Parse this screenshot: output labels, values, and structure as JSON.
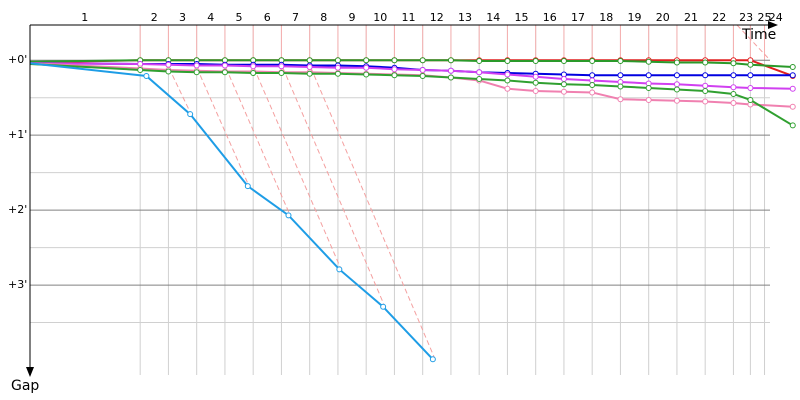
{
  "chart_data": {
    "type": "line",
    "x_label": "Time",
    "y_label": "Gap",
    "xlim": [
      0,
      27.15
    ],
    "ylim": [
      -0.47,
      4.2
    ],
    "xticks": [
      {
        "value": 1.94,
        "label": "1"
      },
      {
        "value": 4.4,
        "label": "2"
      },
      {
        "value": 5.4,
        "label": "3"
      },
      {
        "value": 6.4,
        "label": "4"
      },
      {
        "value": 7.4,
        "label": "5"
      },
      {
        "value": 8.4,
        "label": "6"
      },
      {
        "value": 9.4,
        "label": "7"
      },
      {
        "value": 10.4,
        "label": "8"
      },
      {
        "value": 11.4,
        "label": "9"
      },
      {
        "value": 12.4,
        "label": "10"
      },
      {
        "value": 13.4,
        "label": "11"
      },
      {
        "value": 14.4,
        "label": "12"
      },
      {
        "value": 15.4,
        "label": "13"
      },
      {
        "value": 16.4,
        "label": "14"
      },
      {
        "value": 17.4,
        "label": "15"
      },
      {
        "value": 18.4,
        "label": "16"
      },
      {
        "value": 19.4,
        "label": "17"
      },
      {
        "value": 20.4,
        "label": "18"
      },
      {
        "value": 21.4,
        "label": "19"
      },
      {
        "value": 22.4,
        "label": "20"
      },
      {
        "value": 23.4,
        "label": "21"
      },
      {
        "value": 24.4,
        "label": "22"
      },
      {
        "value": 25.35,
        "label": "23"
      },
      {
        "value": 26.0,
        "label": "25"
      },
      {
        "value": 26.4,
        "label": "24"
      }
    ],
    "xgrid": [
      3.9,
      4.9,
      5.9,
      6.9,
      7.9,
      8.9,
      9.9,
      10.9,
      11.9,
      12.9,
      13.9,
      14.9,
      15.9,
      16.9,
      17.9,
      18.9,
      19.9,
      20.9,
      21.9,
      22.9,
      23.9,
      24.9,
      25.5,
      26.0
    ],
    "yticks": [
      {
        "value": 0,
        "label": "+0'"
      },
      {
        "value": 1,
        "label": "+1'"
      },
      {
        "value": 2,
        "label": "+2'"
      },
      {
        "value": 3,
        "label": "+3'"
      }
    ],
    "minor_yticks": [
      0.5,
      1.5,
      2.5,
      3.5
    ],
    "grid": true,
    "series": [
      {
        "color": "#e02020",
        "x": [
          0,
          3.9,
          4.9,
          5.9,
          6.9,
          7.9,
          8.9,
          9.9,
          10.9,
          11.9,
          12.9,
          13.9,
          14.9,
          15.9,
          16.9,
          17.9,
          18.9,
          19.9,
          20.9,
          21.9,
          22.9,
          23.9,
          24.9,
          25.5,
          27.0
        ],
        "values": [
          0.03,
          0,
          0,
          0,
          0,
          0,
          0,
          0,
          0,
          0,
          0,
          0,
          0,
          0,
          0,
          0,
          0,
          0,
          0,
          0,
          0,
          0,
          0,
          0,
          0.21
        ]
      },
      {
        "color": "#2a9a2a",
        "x": [
          0,
          3.9,
          4.9,
          5.9,
          6.9,
          7.9,
          8.9,
          9.9,
          10.9,
          11.9,
          12.9,
          13.9,
          14.9,
          15.9,
          16.9,
          17.9,
          18.9,
          19.9,
          20.9,
          21.9,
          22.9,
          23.9,
          24.9,
          25.5,
          27.0
        ],
        "values": [
          0.02,
          0,
          0,
          0,
          0,
          0,
          0,
          0,
          0,
          0,
          0,
          0,
          0,
          0.01,
          0.01,
          0.01,
          0.01,
          0.01,
          0.01,
          0.02,
          0.03,
          0.03,
          0.04,
          0.06,
          0.09
        ]
      },
      {
        "color": "#0000e0",
        "x": [
          0,
          3.9,
          4.9,
          5.9,
          6.9,
          7.9,
          8.9,
          9.9,
          10.9,
          11.9,
          12.9,
          13.9,
          14.9,
          15.9,
          16.9,
          17.9,
          18.9,
          19.9,
          20.9,
          21.9,
          22.9,
          23.9,
          24.9,
          25.5,
          27.0
        ],
        "values": [
          0.04,
          0.05,
          0.05,
          0.05,
          0.06,
          0.06,
          0.06,
          0.07,
          0.07,
          0.08,
          0.1,
          0.13,
          0.14,
          0.16,
          0.17,
          0.18,
          0.19,
          0.2,
          0.2,
          0.2,
          0.2,
          0.2,
          0.2,
          0.2,
          0.2
        ]
      },
      {
        "color": "#d040f0",
        "x": [
          0,
          3.9,
          4.9,
          5.9,
          6.9,
          7.9,
          8.9,
          9.9,
          10.9,
          11.9,
          12.9,
          13.9,
          14.9,
          15.9,
          16.9,
          17.9,
          18.9,
          19.9,
          20.9,
          21.9,
          22.9,
          23.9,
          24.9,
          25.5,
          27.0
        ],
        "values": [
          0.04,
          0.05,
          0.06,
          0.07,
          0.07,
          0.08,
          0.08,
          0.09,
          0.1,
          0.1,
          0.12,
          0.13,
          0.14,
          0.16,
          0.19,
          0.22,
          0.25,
          0.27,
          0.29,
          0.31,
          0.32,
          0.34,
          0.36,
          0.37,
          0.38
        ]
      },
      {
        "color": "#f080b0",
        "x": [
          0,
          3.9,
          4.9,
          5.9,
          6.9,
          7.9,
          8.9,
          9.9,
          10.9,
          11.9,
          12.9,
          13.9,
          14.9,
          15.9,
          16.9,
          17.9,
          18.9,
          19.9,
          20.9,
          21.9,
          22.9,
          23.9,
          24.9,
          25.5,
          27.0
        ],
        "values": [
          0.04,
          0.11,
          0.13,
          0.14,
          0.15,
          0.15,
          0.16,
          0.16,
          0.17,
          0.18,
          0.19,
          0.2,
          0.23,
          0.27,
          0.38,
          0.41,
          0.42,
          0.43,
          0.52,
          0.53,
          0.54,
          0.55,
          0.57,
          0.59,
          0.62
        ]
      },
      {
        "color": "#30a030",
        "x": [
          0,
          3.9,
          4.9,
          5.9,
          6.9,
          7.9,
          8.9,
          9.9,
          10.9,
          11.9,
          12.9,
          13.9,
          14.9,
          15.9,
          16.9,
          17.9,
          18.9,
          19.9,
          20.9,
          21.9,
          22.9,
          23.9,
          24.9,
          25.5,
          27.0
        ],
        "values": [
          0.05,
          0.13,
          0.15,
          0.16,
          0.16,
          0.17,
          0.17,
          0.18,
          0.18,
          0.19,
          0.2,
          0.21,
          0.23,
          0.25,
          0.27,
          0.3,
          0.32,
          0.33,
          0.35,
          0.37,
          0.39,
          0.41,
          0.45,
          0.53,
          0.87
        ]
      },
      {
        "color": "#1e9de6",
        "x": [
          0,
          4.12,
          5.67,
          7.71,
          9.15,
          10.95,
          12.5,
          14.26
        ],
        "values": [
          0.04,
          0.21,
          0.72,
          1.68,
          2.07,
          2.79,
          3.29,
          3.99
        ]
      }
    ]
  }
}
